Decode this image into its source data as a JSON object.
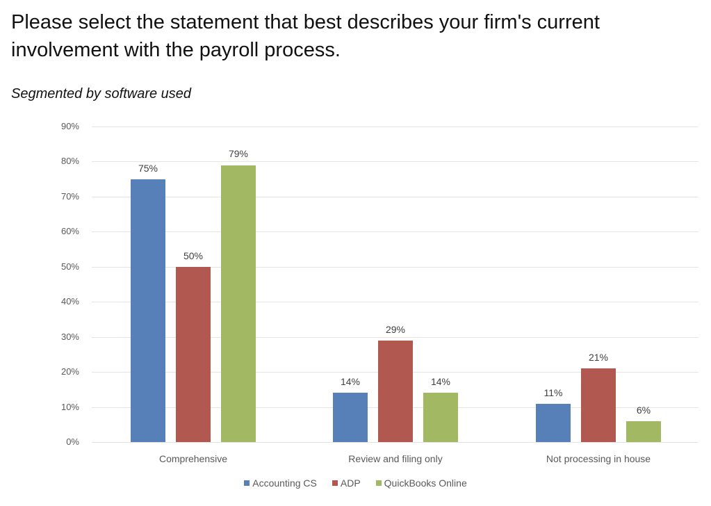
{
  "title": "Please select the statement that best describes your firm's current involvement with the payroll process.",
  "subtitle": "Segmented by software used",
  "chart_data": {
    "type": "bar",
    "title": "Please select the statement that best describes your firm's current involvement with the payroll process.",
    "subtitle": "Segmented by software used",
    "categories": [
      "Comprehensive",
      "Review and filing only",
      "Not processing in house"
    ],
    "series": [
      {
        "name": "Accounting CS",
        "color": "#5880b8",
        "values": [
          75,
          14,
          11
        ],
        "labels": [
          "75%",
          "14%",
          "11%"
        ]
      },
      {
        "name": "ADP",
        "color": "#b15850",
        "values": [
          50,
          29,
          21
        ],
        "labels": [
          "50%",
          "29%",
          "21%"
        ]
      },
      {
        "name": "QuickBooks Online",
        "color": "#a3b863",
        "values": [
          79,
          14,
          6
        ],
        "labels": [
          "79%",
          "14%",
          "6%"
        ]
      }
    ],
    "yticks": [
      "0%",
      "10%",
      "20%",
      "30%",
      "40%",
      "50%",
      "60%",
      "70%",
      "80%",
      "90%"
    ],
    "ylim": [
      0,
      90
    ],
    "xlabel": "",
    "ylabel": "",
    "grid": true,
    "legend_position": "bottom"
  }
}
